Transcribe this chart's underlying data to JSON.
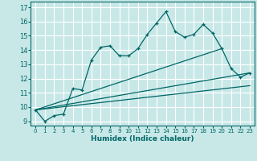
{
  "xlabel": "Humidex (Indice chaleur)",
  "ylabel": "",
  "bg_color": "#c8e8e8",
  "grid_color": "#ffffff",
  "line_color": "#006666",
  "marker": "+",
  "xlim": [
    -0.5,
    23.5
  ],
  "ylim": [
    8.7,
    17.4
  ],
  "xticks": [
    0,
    1,
    2,
    3,
    4,
    5,
    6,
    7,
    8,
    9,
    10,
    11,
    12,
    13,
    14,
    15,
    16,
    17,
    18,
    19,
    20,
    21,
    22,
    23
  ],
  "yticks": [
    9,
    10,
    11,
    12,
    13,
    14,
    15,
    16,
    17
  ],
  "series": [
    [
      0,
      9.8
    ],
    [
      1,
      9.0
    ],
    [
      2,
      9.4
    ],
    [
      3,
      9.5
    ],
    [
      4,
      11.3
    ],
    [
      5,
      11.2
    ],
    [
      6,
      13.3
    ],
    [
      7,
      14.2
    ],
    [
      8,
      14.3
    ],
    [
      9,
      13.6
    ],
    [
      10,
      13.6
    ],
    [
      11,
      14.1
    ],
    [
      12,
      15.1
    ],
    [
      13,
      15.9
    ],
    [
      14,
      16.7
    ],
    [
      15,
      15.3
    ],
    [
      16,
      14.9
    ],
    [
      17,
      15.1
    ],
    [
      18,
      15.8
    ],
    [
      19,
      15.2
    ],
    [
      20,
      14.1
    ],
    [
      21,
      12.7
    ],
    [
      22,
      12.1
    ],
    [
      23,
      12.4
    ]
  ],
  "straight_lines": [
    {
      "x": [
        0,
        20
      ],
      "y": [
        9.8,
        14.1
      ]
    },
    {
      "x": [
        0,
        23
      ],
      "y": [
        9.8,
        12.4
      ]
    },
    {
      "x": [
        0,
        23
      ],
      "y": [
        9.8,
        11.5
      ]
    }
  ]
}
